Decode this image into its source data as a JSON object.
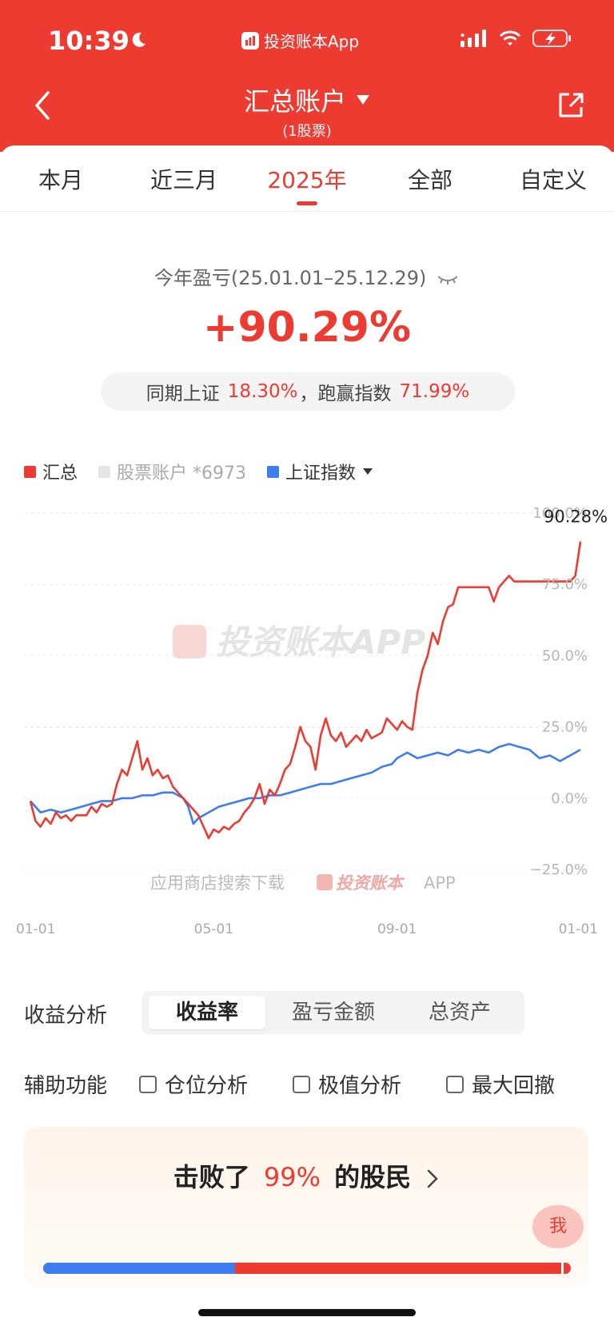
{
  "status_bar": {
    "time": "10:39",
    "source_app": "投资账本App"
  },
  "nav": {
    "title": "汇总账户",
    "subtitle": "(1股票)"
  },
  "tabs": [
    {
      "label": "本月",
      "active": false
    },
    {
      "label": "近三月",
      "active": false
    },
    {
      "label": "2025年",
      "active": true
    },
    {
      "label": "全部",
      "active": false
    },
    {
      "label": "自定义",
      "active": false
    }
  ],
  "summary": {
    "period_label": "今年盈亏(25.01.01–25.12.29)",
    "pnl_percent": "+90.29%",
    "compare_prefix": "同期上证",
    "sh_index_return": "18.30%",
    "compare_mid": "，跑赢指数",
    "excess_return": "71.99%"
  },
  "legend": {
    "total": "汇总",
    "stock_account": "股票账户 *6973",
    "sh_index": "上证指数"
  },
  "chart_data": {
    "type": "line",
    "x_tick_labels": [
      "01-01",
      "05-01",
      "09-01",
      "01-01"
    ],
    "y_tick_labels": [
      "100.0%",
      "75.0%",
      "50.0%",
      "25.0%",
      "0.0%",
      "−25.0%"
    ],
    "ylim": [
      -25,
      100
    ],
    "y_unit": "%",
    "end_label": "90.28%",
    "watermark": "投资账本APP",
    "bottom_watermark_prefix": "应用商店搜索下载",
    "bottom_watermark_app": "投资账本",
    "bottom_watermark_suffix": "APP",
    "series": [
      {
        "name": "汇总",
        "color": "#ee3b31",
        "points": [
          [
            0,
            -1
          ],
          [
            1,
            -8
          ],
          [
            2,
            -10
          ],
          [
            3,
            -7
          ],
          [
            4,
            -9
          ],
          [
            5,
            -5
          ],
          [
            6,
            -7
          ],
          [
            7,
            -6
          ],
          [
            8,
            -8
          ],
          [
            9,
            -6
          ],
          [
            11,
            -6
          ],
          [
            12,
            -3
          ],
          [
            13,
            -5
          ],
          [
            14,
            -2
          ],
          [
            15,
            -3
          ],
          [
            16,
            -2
          ],
          [
            17,
            5
          ],
          [
            18,
            10
          ],
          [
            19,
            8
          ],
          [
            20,
            14
          ],
          [
            21,
            20
          ],
          [
            22,
            10
          ],
          [
            23,
            14
          ],
          [
            24,
            8
          ],
          [
            25,
            10
          ],
          [
            26,
            7
          ],
          [
            27,
            8
          ],
          [
            28,
            4
          ],
          [
            29,
            2
          ],
          [
            30,
            0
          ],
          [
            31,
            -2
          ],
          [
            32,
            -4
          ],
          [
            33,
            -6
          ],
          [
            34,
            -10
          ],
          [
            35,
            -14
          ],
          [
            36,
            -11
          ],
          [
            37,
            -12
          ],
          [
            38,
            -10
          ],
          [
            39,
            -11
          ],
          [
            40,
            -9
          ],
          [
            41,
            -8
          ],
          [
            42,
            -5
          ],
          [
            43,
            -3
          ],
          [
            44,
            0
          ],
          [
            45,
            5
          ],
          [
            46,
            -2
          ],
          [
            47,
            3
          ],
          [
            48,
            1
          ],
          [
            49,
            5
          ],
          [
            50,
            10
          ],
          [
            51,
            12
          ],
          [
            52,
            18
          ],
          [
            53,
            25
          ],
          [
            54,
            20
          ],
          [
            55,
            18
          ],
          [
            56,
            10
          ],
          [
            57,
            22
          ],
          [
            58,
            28
          ],
          [
            59,
            22
          ],
          [
            60,
            20
          ],
          [
            61,
            23
          ],
          [
            62,
            18
          ],
          [
            63,
            20
          ],
          [
            64,
            22
          ],
          [
            65,
            20
          ],
          [
            66,
            24
          ],
          [
            67,
            21
          ],
          [
            68,
            22
          ],
          [
            69,
            23
          ],
          [
            70,
            28
          ],
          [
            71,
            26
          ],
          [
            72,
            24
          ],
          [
            73,
            27
          ],
          [
            74,
            25
          ],
          [
            75,
            24
          ],
          [
            76,
            37
          ],
          [
            77,
            45
          ],
          [
            78,
            50
          ],
          [
            79,
            58
          ],
          [
            80,
            54
          ],
          [
            81,
            62
          ],
          [
            82,
            67
          ],
          [
            83,
            68
          ],
          [
            84,
            74
          ],
          [
            85,
            74
          ],
          [
            86,
            74
          ],
          [
            87,
            74
          ],
          [
            88,
            74
          ],
          [
            89,
            74
          ],
          [
            90,
            74
          ],
          [
            91,
            69
          ],
          [
            92,
            74
          ],
          [
            93,
            76
          ],
          [
            94,
            78
          ],
          [
            95,
            76
          ],
          [
            96,
            76
          ],
          [
            97,
            76
          ],
          [
            98,
            76
          ],
          [
            99,
            76
          ],
          [
            100,
            76
          ],
          [
            101,
            76
          ],
          [
            102,
            76
          ],
          [
            103,
            76
          ],
          [
            104,
            76
          ],
          [
            105,
            76
          ],
          [
            106,
            76
          ],
          [
            107,
            78
          ],
          [
            108,
            90
          ]
        ]
      },
      {
        "name": "上证指数",
        "color": "#3d7df0",
        "points": [
          [
            0,
            -1
          ],
          [
            2,
            -5
          ],
          [
            4,
            -4
          ],
          [
            6,
            -5
          ],
          [
            8,
            -4
          ],
          [
            10,
            -3
          ],
          [
            12,
            -2
          ],
          [
            14,
            -1
          ],
          [
            16,
            -1
          ],
          [
            18,
            0
          ],
          [
            20,
            0
          ],
          [
            22,
            1
          ],
          [
            24,
            1
          ],
          [
            26,
            2
          ],
          [
            28,
            2
          ],
          [
            30,
            0
          ],
          [
            31,
            -3
          ],
          [
            32,
            -9
          ],
          [
            33,
            -7
          ],
          [
            35,
            -5
          ],
          [
            37,
            -3
          ],
          [
            39,
            -2
          ],
          [
            41,
            -1
          ],
          [
            43,
            0
          ],
          [
            45,
            0
          ],
          [
            47,
            1
          ],
          [
            49,
            1
          ],
          [
            51,
            2
          ],
          [
            53,
            3
          ],
          [
            55,
            4
          ],
          [
            57,
            5
          ],
          [
            59,
            5
          ],
          [
            61,
            6
          ],
          [
            63,
            7
          ],
          [
            65,
            8
          ],
          [
            67,
            9
          ],
          [
            69,
            11
          ],
          [
            71,
            12
          ],
          [
            72,
            14
          ],
          [
            74,
            16
          ],
          [
            76,
            14
          ],
          [
            78,
            15
          ],
          [
            80,
            16
          ],
          [
            82,
            15
          ],
          [
            84,
            17
          ],
          [
            86,
            16
          ],
          [
            88,
            17
          ],
          [
            90,
            16
          ],
          [
            92,
            18
          ],
          [
            94,
            19
          ],
          [
            96,
            18
          ],
          [
            98,
            17
          ],
          [
            100,
            14
          ],
          [
            102,
            15
          ],
          [
            104,
            13
          ],
          [
            106,
            15
          ],
          [
            108,
            17
          ]
        ]
      }
    ]
  },
  "analysis": {
    "label": "收益分析",
    "options": [
      {
        "label": "收益率",
        "active": true
      },
      {
        "label": "盈亏金额",
        "active": false
      },
      {
        "label": "总资产",
        "active": false
      }
    ]
  },
  "aux": {
    "label": "辅助功能",
    "options": [
      "仓位分析",
      "极值分析",
      "最大回撤"
    ]
  },
  "beat": {
    "prefix": "击败了",
    "percent": "99%",
    "suffix": "的股民",
    "me_label": "我",
    "percentile": 0.99
  }
}
